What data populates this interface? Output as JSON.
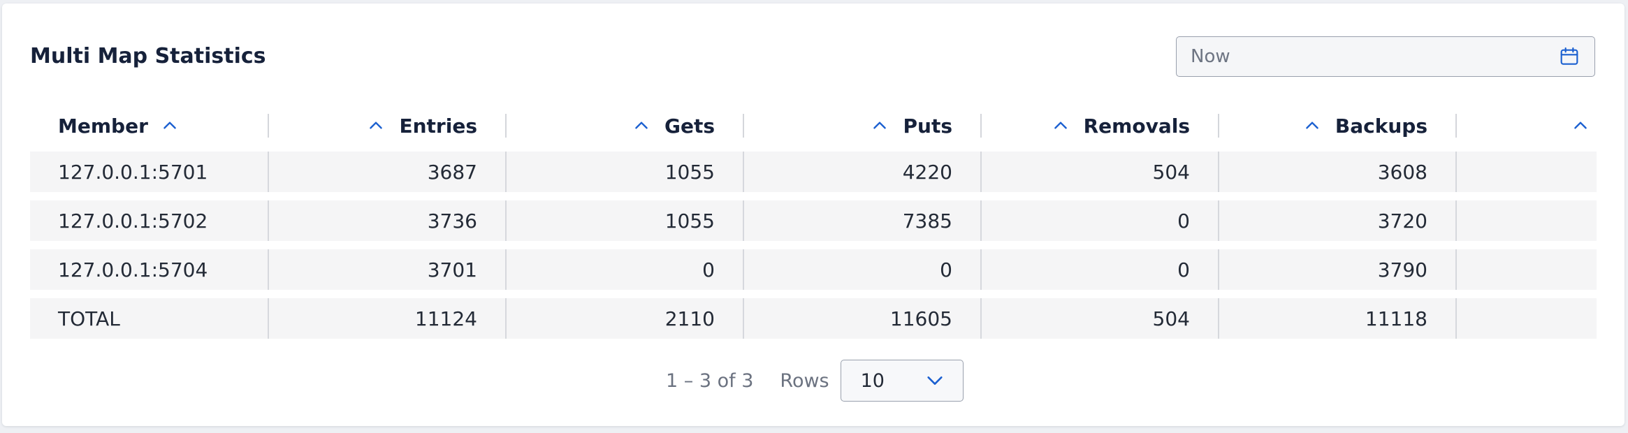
{
  "title": "Multi Map Statistics",
  "date_filter": {
    "placeholder": "Now",
    "icon": "calendar-icon"
  },
  "table": {
    "columns": [
      "Member",
      "Entries",
      "Gets",
      "Puts",
      "Removals",
      "Backups",
      ""
    ],
    "rows": [
      {
        "member": "127.0.0.1:5701",
        "entries": "3687",
        "gets": "1055",
        "puts": "4220",
        "removals": "504",
        "backups": "3608"
      },
      {
        "member": "127.0.0.1:5702",
        "entries": "3736",
        "gets": "1055",
        "puts": "7385",
        "removals": "0",
        "backups": "3720"
      },
      {
        "member": "127.0.0.1:5704",
        "entries": "3701",
        "gets": "0",
        "puts": "0",
        "removals": "0",
        "backups": "3790"
      }
    ],
    "total": {
      "member": "TOTAL",
      "entries": "11124",
      "gets": "2110",
      "puts": "11605",
      "removals": "504",
      "backups": "11118"
    }
  },
  "pagination": {
    "range": "1 – 3 of 3",
    "rows_label": "Rows",
    "rows_per_page": "10"
  },
  "colors": {
    "accent": "#1a5fd0",
    "title": "#16213a",
    "row_bg": "#f5f5f6"
  }
}
